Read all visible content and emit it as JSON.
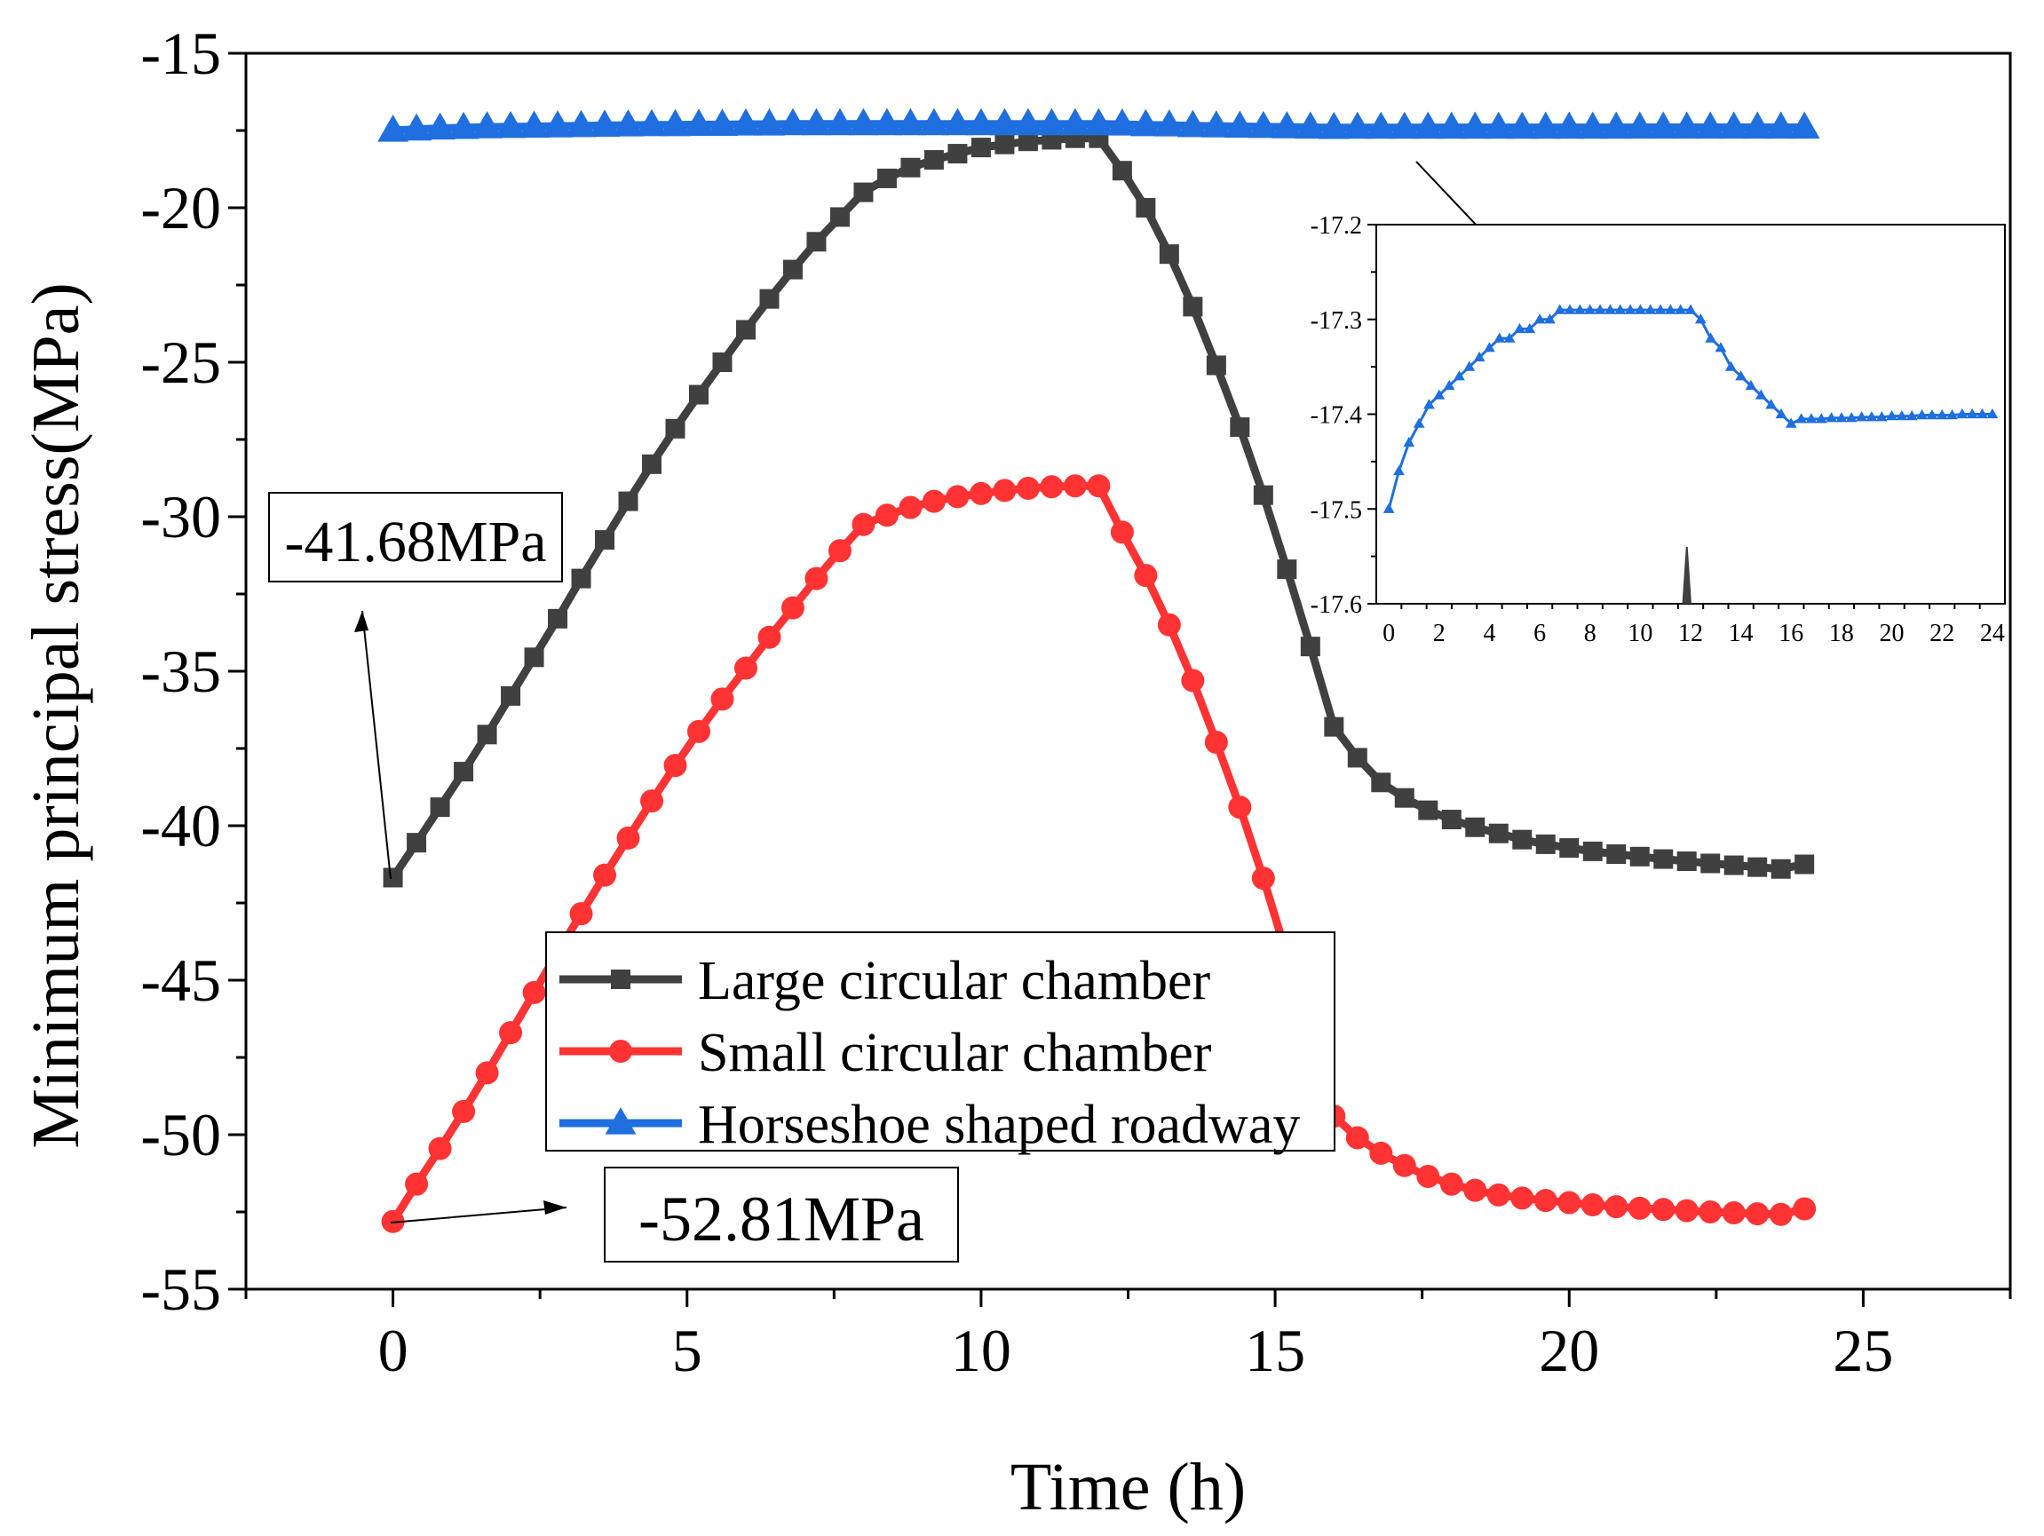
{
  "chart_data": [
    {
      "type": "line",
      "xlabel": "Time (h)",
      "ylabel": "Minimum principal stress(MPa)",
      "xlim": [
        -2.5,
        27.5
      ],
      "ylim": [
        -55,
        -15
      ],
      "xticks": [
        0,
        5,
        10,
        15,
        20,
        25
      ],
      "yticks": [
        -15,
        -20,
        -25,
        -30,
        -35,
        -40,
        -45,
        -50,
        -55
      ],
      "legend": "bottom-center",
      "series": [
        {
          "name": "Large circular chamber",
          "color": "#404040",
          "marker": "square",
          "x": [
            0,
            0.4,
            0.8,
            1.2,
            1.6,
            2.0,
            2.4,
            2.8,
            3.2,
            3.6,
            4.0,
            4.4,
            4.8,
            5.2,
            5.6,
            6.0,
            6.4,
            6.8,
            7.2,
            7.6,
            8.0,
            8.4,
            8.8,
            9.2,
            9.6,
            10.0,
            10.4,
            10.8,
            11.2,
            11.6,
            12.0,
            12.4,
            12.8,
            13.2,
            13.6,
            14.0,
            14.4,
            14.8,
            15.2,
            15.6,
            16.0,
            16.4,
            16.8,
            17.2,
            17.6,
            18.0,
            18.4,
            18.8,
            19.2,
            19.6,
            20.0,
            20.4,
            20.8,
            21.2,
            21.6,
            22.0,
            22.4,
            22.8,
            23.2,
            23.6,
            24.0
          ],
          "y": [
            -41.68,
            -40.55,
            -39.4,
            -38.25,
            -37.05,
            -35.8,
            -34.55,
            -33.3,
            -32.0,
            -30.75,
            -29.5,
            -28.3,
            -27.15,
            -26.05,
            -25.0,
            -23.95,
            -22.95,
            -22.0,
            -21.1,
            -20.3,
            -19.5,
            -19.05,
            -18.7,
            -18.45,
            -18.25,
            -18.05,
            -17.95,
            -17.85,
            -17.8,
            -17.75,
            -17.75,
            -18.8,
            -20.0,
            -21.5,
            -23.2,
            -25.1,
            -27.1,
            -29.3,
            -31.7,
            -34.2,
            -36.8,
            -37.8,
            -38.6,
            -39.1,
            -39.5,
            -39.8,
            -40.05,
            -40.25,
            -40.45,
            -40.6,
            -40.72,
            -40.83,
            -40.92,
            -41.0,
            -41.08,
            -41.15,
            -41.22,
            -41.28,
            -41.34,
            -41.4,
            -41.25
          ]
        },
        {
          "name": "Small circular chamber",
          "color": "#ff3333",
          "marker": "circle",
          "x": [
            0,
            0.4,
            0.8,
            1.2,
            1.6,
            2.0,
            2.4,
            2.8,
            3.2,
            3.6,
            4.0,
            4.4,
            4.8,
            5.2,
            5.6,
            6.0,
            6.4,
            6.8,
            7.2,
            7.6,
            8.0,
            8.4,
            8.8,
            9.2,
            9.6,
            10.0,
            10.4,
            10.8,
            11.2,
            11.6,
            12.0,
            12.4,
            12.8,
            13.2,
            13.6,
            14.0,
            14.4,
            14.8,
            15.2,
            15.6,
            16.0,
            16.4,
            16.8,
            17.2,
            17.6,
            18.0,
            18.4,
            18.8,
            19.2,
            19.6,
            20.0,
            20.4,
            20.8,
            21.2,
            21.6,
            22.0,
            22.4,
            22.8,
            23.2,
            23.6,
            24.0
          ],
          "y": [
            -52.81,
            -51.6,
            -50.45,
            -49.25,
            -48.0,
            -46.7,
            -45.4,
            -44.1,
            -42.85,
            -41.6,
            -40.4,
            -39.2,
            -38.05,
            -36.95,
            -35.9,
            -34.9,
            -33.9,
            -32.95,
            -32.0,
            -31.1,
            -30.25,
            -29.95,
            -29.7,
            -29.5,
            -29.35,
            -29.25,
            -29.15,
            -29.08,
            -29.03,
            -29.0,
            -29.0,
            -30.5,
            -31.9,
            -33.5,
            -35.3,
            -37.3,
            -39.4,
            -41.7,
            -44.2,
            -46.8,
            -49.4,
            -50.1,
            -50.6,
            -51.0,
            -51.35,
            -51.6,
            -51.8,
            -51.95,
            -52.05,
            -52.13,
            -52.2,
            -52.27,
            -52.33,
            -52.38,
            -52.42,
            -52.46,
            -52.5,
            -52.53,
            -52.56,
            -52.58,
            -52.4
          ]
        },
        {
          "name": "Horseshoe shaped roadway",
          "color": "#1f6fe0",
          "marker": "triangle",
          "x": [
            0,
            0.4,
            0.8,
            1.2,
            1.6,
            2.0,
            2.4,
            2.8,
            3.2,
            3.6,
            4.0,
            4.4,
            4.8,
            5.2,
            5.6,
            6.0,
            6.4,
            6.8,
            7.2,
            7.6,
            8.0,
            8.4,
            8.8,
            9.2,
            9.6,
            10.0,
            10.4,
            10.8,
            11.2,
            11.6,
            12.0,
            12.4,
            12.8,
            13.2,
            13.6,
            14.0,
            14.4,
            14.8,
            15.2,
            15.6,
            16.0,
            16.4,
            16.8,
            17.2,
            17.6,
            18.0,
            18.4,
            18.8,
            19.2,
            19.6,
            20.0,
            20.4,
            20.8,
            21.2,
            21.6,
            22.0,
            22.4,
            22.8,
            23.2,
            23.6,
            24.0
          ],
          "y": [
            -17.5,
            -17.46,
            -17.43,
            -17.41,
            -17.39,
            -17.38,
            -17.37,
            -17.36,
            -17.35,
            -17.34,
            -17.33,
            -17.32,
            -17.32,
            -17.31,
            -17.31,
            -17.3,
            -17.3,
            -17.29,
            -17.29,
            -17.29,
            -17.29,
            -17.29,
            -17.29,
            -17.29,
            -17.29,
            -17.29,
            -17.29,
            -17.29,
            -17.29,
            -17.29,
            -17.29,
            -17.3,
            -17.32,
            -17.33,
            -17.35,
            -17.36,
            -17.37,
            -17.38,
            -17.39,
            -17.4,
            -17.41,
            -17.405,
            -17.405,
            -17.405,
            -17.404,
            -17.404,
            -17.404,
            -17.403,
            -17.403,
            -17.403,
            -17.402,
            -17.402,
            -17.402,
            -17.401,
            -17.401,
            -17.401,
            -17.401,
            -17.4,
            -17.4,
            -17.4,
            -17.4
          ]
        }
      ],
      "annotations": [
        {
          "text": "-41.68MPa",
          "x": 0,
          "y": -41.68
        },
        {
          "text": "-52.81MPa",
          "x": 0,
          "y": -52.81
        }
      ]
    },
    {
      "type": "line",
      "xlabel": "",
      "ylabel": "",
      "xlim": [
        -0.5,
        24.5
      ],
      "ylim": [
        -17.6,
        -17.2
      ],
      "xticks": [
        0,
        2,
        4,
        6,
        8,
        10,
        12,
        14,
        16,
        18,
        20,
        22,
        24
      ],
      "yticks": [
        -17.2,
        -17.3,
        -17.4,
        -17.5,
        -17.6
      ],
      "series": [
        {
          "name": "",
          "color": "#1f6fe0",
          "marker": "triangle",
          "x": [
            0,
            0.4,
            0.8,
            1.2,
            1.6,
            2.0,
            2.4,
            2.8,
            3.2,
            3.6,
            4.0,
            4.4,
            4.8,
            5.2,
            5.6,
            6.0,
            6.4,
            6.8,
            7.2,
            7.6,
            8.0,
            8.4,
            8.8,
            9.2,
            9.6,
            10.0,
            10.4,
            10.8,
            11.2,
            11.6,
            12.0,
            12.4,
            12.8,
            13.2,
            13.6,
            14.0,
            14.4,
            14.8,
            15.2,
            15.6,
            16.0,
            16.4,
            16.8,
            17.2,
            17.6,
            18.0,
            18.4,
            18.8,
            19.2,
            19.6,
            20.0,
            20.4,
            20.8,
            21.2,
            21.6,
            22.0,
            22.4,
            22.8,
            23.2,
            23.6,
            24.0
          ],
          "y": [
            -17.5,
            -17.46,
            -17.43,
            -17.41,
            -17.39,
            -17.38,
            -17.37,
            -17.36,
            -17.35,
            -17.34,
            -17.33,
            -17.32,
            -17.32,
            -17.31,
            -17.31,
            -17.3,
            -17.3,
            -17.29,
            -17.29,
            -17.29,
            -17.29,
            -17.29,
            -17.29,
            -17.29,
            -17.29,
            -17.29,
            -17.29,
            -17.29,
            -17.29,
            -17.29,
            -17.29,
            -17.3,
            -17.32,
            -17.33,
            -17.35,
            -17.36,
            -17.37,
            -17.38,
            -17.39,
            -17.4,
            -17.41,
            -17.405,
            -17.405,
            -17.405,
            -17.404,
            -17.404,
            -17.404,
            -17.403,
            -17.403,
            -17.403,
            -17.402,
            -17.402,
            -17.402,
            -17.401,
            -17.401,
            -17.401,
            -17.401,
            -17.4,
            -17.4,
            -17.4,
            -17.4
          ]
        }
      ]
    }
  ]
}
